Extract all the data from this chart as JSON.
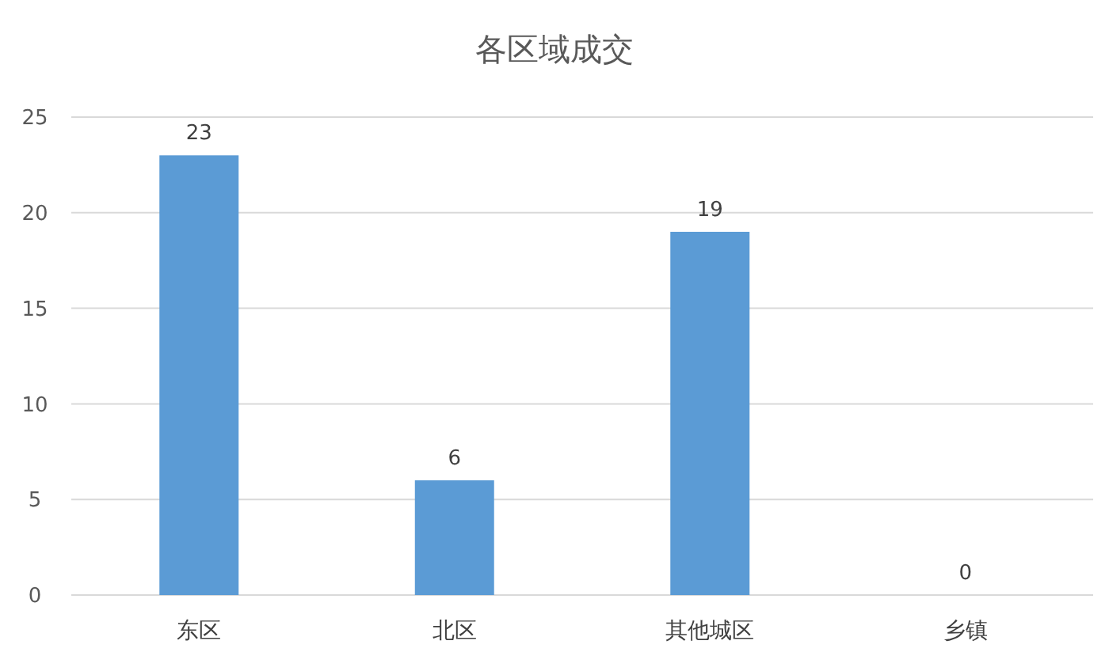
{
  "chart_data": {
    "type": "bar",
    "title": "各区域成交",
    "categories": [
      "东区",
      "北区",
      "其他城区",
      "乡镇"
    ],
    "values": [
      23,
      6,
      19,
      0
    ],
    "color": "#5b9bd5",
    "ylim": [
      0,
      25
    ],
    "yticks": [
      0,
      5,
      10,
      15,
      20,
      25
    ],
    "grid": "y",
    "data_labels": true
  }
}
